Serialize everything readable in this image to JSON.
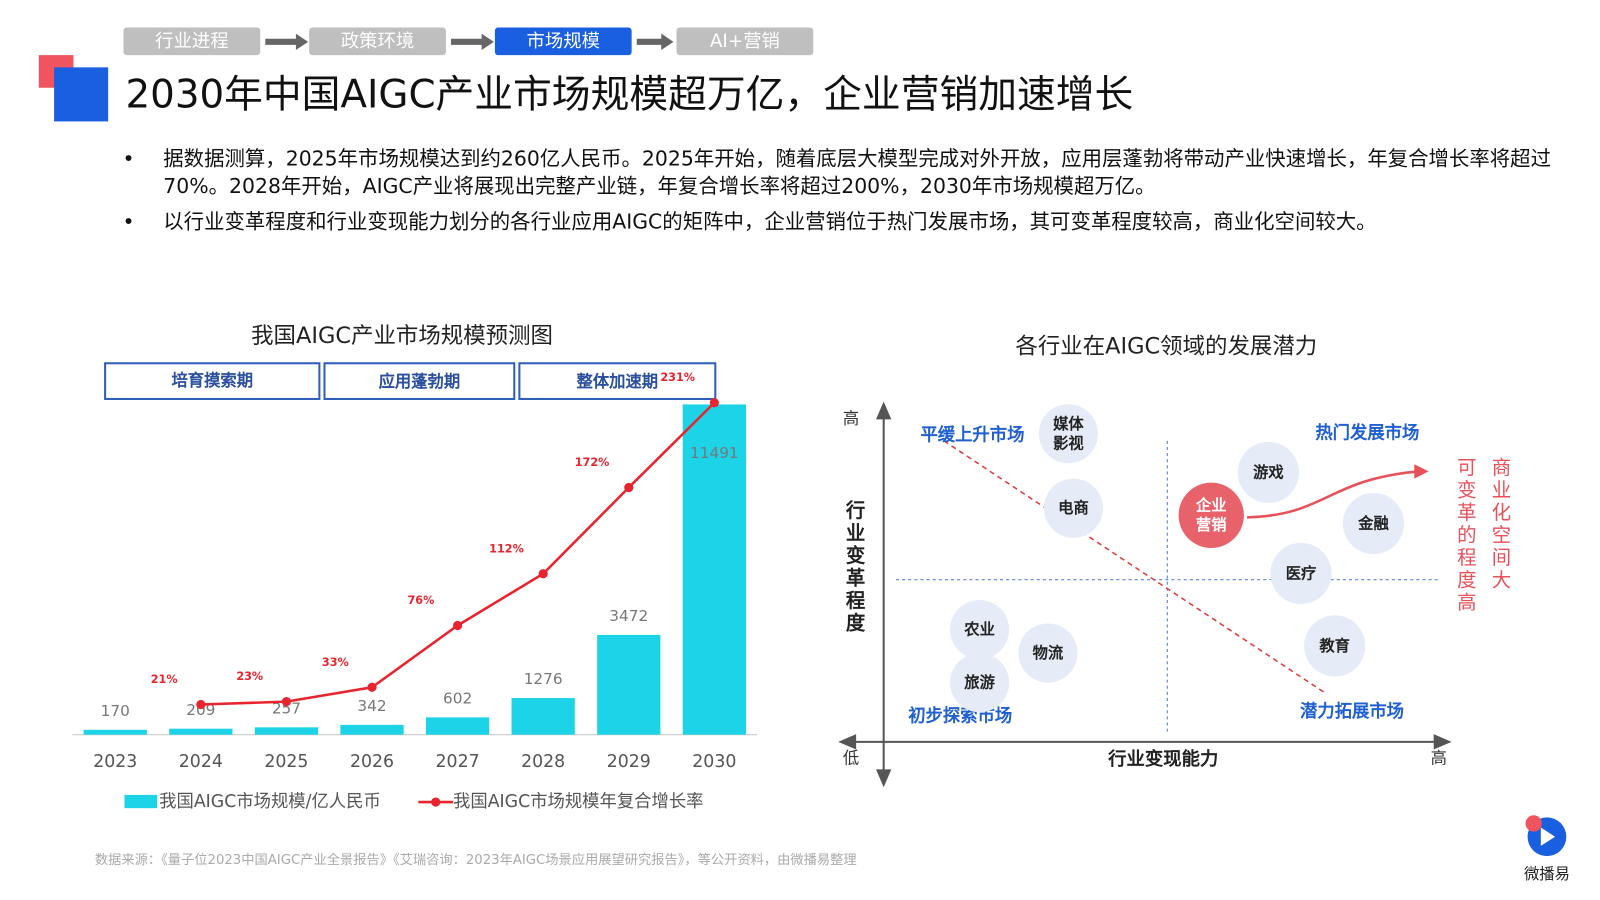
{
  "nav": [
    "行业进程",
    "政策环境",
    "市场规模",
    "AI+营销"
  ],
  "title": "2030年中国AIGC产业市场规模超万亿，企业营销加速增长",
  "bullets": [
    "据数据测算，2025年市场规模达到约260亿人民币。2025年开始，随着底层大模型完成对外开放，应用层蓬勃将带动产业快速增长，年复合增长率将超过70%。2028年开始，AIGC产业将展现出完整产业链，年复合增长率将超过200%，2030年市场规模超万亿。",
    "以行业变革程度和行业变现能力划分的各行业应用AIGC的矩阵中，企业营销位于热门发展市场，其可变革程度较高，商业化空间较大。"
  ],
  "chart_data": {
    "type": "bar_line",
    "title": "我国AIGC产业市场规模预测图",
    "phases": [
      "培育摸索期",
      "应用蓬勃期",
      "整体加速期"
    ],
    "categories": [
      "2023",
      "2024",
      "2025",
      "2026",
      "2027",
      "2028",
      "2029",
      "2030"
    ],
    "series": [
      {
        "name": "我国AIGC市场规模/亿人民币",
        "color": "#1dd3e7",
        "type": "bar",
        "values": [
          170,
          209,
          257,
          342,
          602,
          1276,
          3472,
          11491
        ]
      },
      {
        "name": "我国AIGC市场规模年复合增长率",
        "color": "#e8252f",
        "type": "line",
        "axis": "y2",
        "values": [
          null,
          21,
          23,
          33,
          76,
          112,
          172,
          231
        ],
        "value_labels": [
          null,
          "21%",
          "23%",
          "33%",
          "76%",
          "112%",
          "172%",
          "231%"
        ]
      }
    ],
    "ylim": [
      0,
      12000
    ],
    "y2lim": [
      0,
      240
    ]
  },
  "matrix": {
    "title": "各行业在AIGC领域的发展潜力",
    "y_label": "行业变革程度",
    "x_label": "行业变现能力",
    "y_high": "高",
    "low": "低",
    "x_high": "高",
    "quadrants": [
      "平缓上升市场",
      "热门发展市场",
      "初步探索市场",
      "潜力拓展市场"
    ],
    "bubbles": [
      "媒体影视",
      "电商",
      "游戏",
      "企业营销",
      "金融",
      "医疗",
      "教育",
      "农业",
      "物流",
      "旅游"
    ],
    "notes": [
      "可变革的程度高",
      "商业化空间大"
    ]
  },
  "source": "数据来源：《量子位2023中国AIGC产业全景报告》《艾瑞咨询：2023年AIGC场景应用展望研究报告》，等公开资料，由微播易整理",
  "logo": "微播易"
}
